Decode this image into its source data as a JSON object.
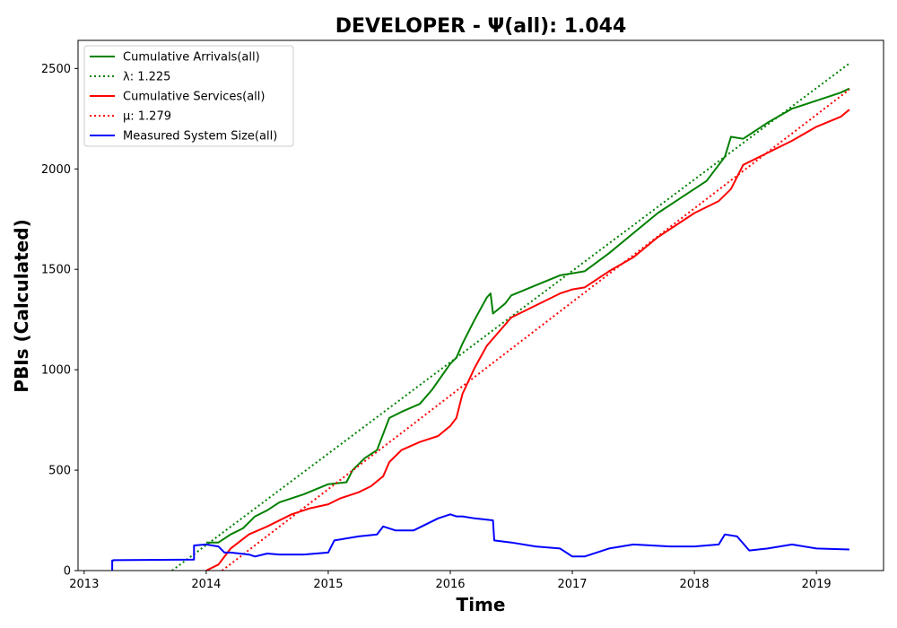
{
  "chart_data": {
    "type": "line",
    "title": "DEVELOPER -  Ψ(all): 1.044",
    "xlabel": "Time",
    "ylabel": "PBIs (Calculated)",
    "xlim": [
      2012.95,
      2019.55
    ],
    "ylim": [
      0,
      2640
    ],
    "xticks": [
      2013,
      2014,
      2015,
      2016,
      2017,
      2018,
      2019
    ],
    "xtick_labels": [
      "2013",
      "2014",
      "2015",
      "2016",
      "2017",
      "2018",
      "2019"
    ],
    "yticks": [
      0,
      500,
      1000,
      1500,
      2000,
      2500
    ],
    "ytick_labels": [
      "0",
      "500",
      "1000",
      "1500",
      "2000",
      "2500"
    ],
    "grid": false,
    "legend_position": "top-left",
    "series": [
      {
        "name": "Cumulative Arrivals(all)",
        "color": "#008000",
        "style": "solid",
        "x": [
          2014.0,
          2014.1,
          2014.2,
          2014.3,
          2014.4,
          2014.5,
          2014.6,
          2014.8,
          2015.0,
          2015.15,
          2015.2,
          2015.3,
          2015.4,
          2015.5,
          2015.6,
          2015.75,
          2015.85,
          2016.0,
          2016.05,
          2016.1,
          2016.2,
          2016.3,
          2016.33,
          2016.35,
          2016.45,
          2016.5,
          2016.7,
          2016.9,
          2017.0,
          2017.1,
          2017.3,
          2017.5,
          2017.7,
          2017.9,
          2018.1,
          2018.25,
          2018.3,
          2018.4,
          2018.6,
          2018.8,
          2019.0,
          2019.2,
          2019.27
        ],
        "y": [
          140,
          140,
          180,
          210,
          270,
          300,
          340,
          380,
          430,
          440,
          500,
          560,
          600,
          760,
          790,
          830,
          900,
          1030,
          1060,
          1130,
          1250,
          1360,
          1380,
          1280,
          1330,
          1370,
          1420,
          1470,
          1480,
          1490,
          1580,
          1680,
          1780,
          1860,
          1940,
          2060,
          2160,
          2150,
          2230,
          2300,
          2340,
          2380,
          2400
        ]
      },
      {
        "name": "λ: 1.225",
        "color": "#008000",
        "style": "dotted",
        "x": [
          2013.72,
          2019.27
        ],
        "y": [
          0,
          2525
        ]
      },
      {
        "name": "Cumulative Services(all)",
        "color": "#ff0000",
        "style": "solid",
        "x": [
          2014.0,
          2014.1,
          2014.2,
          2014.35,
          2014.5,
          2014.7,
          2014.85,
          2015.0,
          2015.1,
          2015.25,
          2015.35,
          2015.45,
          2015.5,
          2015.6,
          2015.75,
          2015.9,
          2016.0,
          2016.05,
          2016.1,
          2016.2,
          2016.3,
          2016.4,
          2016.5,
          2016.7,
          2016.9,
          2017.0,
          2017.1,
          2017.3,
          2017.5,
          2017.7,
          2017.9,
          2018.0,
          2018.2,
          2018.3,
          2018.4,
          2018.6,
          2018.8,
          2019.0,
          2019.2,
          2019.27
        ],
        "y": [
          0,
          30,
          110,
          180,
          220,
          280,
          310,
          330,
          360,
          390,
          420,
          470,
          540,
          600,
          640,
          670,
          720,
          760,
          880,
          1010,
          1120,
          1190,
          1260,
          1320,
          1380,
          1400,
          1410,
          1490,
          1560,
          1660,
          1740,
          1780,
          1840,
          1900,
          2020,
          2080,
          2140,
          2210,
          2260,
          2295
        ]
      },
      {
        "name": "μ: 1.279",
        "color": "#ff0000",
        "style": "dotted",
        "x": [
          2014.13,
          2019.27
        ],
        "y": [
          0,
          2395
        ]
      },
      {
        "name": "Measured System Size(all)",
        "color": "#0000ff",
        "style": "solid",
        "x": [
          2013.23,
          2013.23,
          2013.24,
          2013.24,
          2013.9,
          2013.9,
          2014.0,
          2014.1,
          2014.15,
          2014.2,
          2014.35,
          2014.4,
          2014.5,
          2014.6,
          2014.8,
          2015.0,
          2015.05,
          2015.25,
          2015.4,
          2015.45,
          2015.55,
          2015.7,
          2015.9,
          2016.0,
          2016.05,
          2016.1,
          2016.2,
          2016.35,
          2016.36,
          2016.5,
          2016.7,
          2016.9,
          2017.0,
          2017.1,
          2017.3,
          2017.5,
          2017.8,
          2018.0,
          2018.2,
          2018.25,
          2018.35,
          2018.45,
          2018.6,
          2018.8,
          2019.0,
          2019.27
        ],
        "y": [
          0,
          50,
          50,
          52,
          55,
          125,
          130,
          120,
          90,
          90,
          80,
          70,
          85,
          80,
          80,
          90,
          150,
          170,
          180,
          220,
          200,
          200,
          260,
          280,
          270,
          270,
          260,
          250,
          150,
          140,
          120,
          110,
          70,
          70,
          110,
          130,
          120,
          120,
          130,
          180,
          170,
          100,
          110,
          130,
          110,
          105
        ]
      }
    ]
  }
}
